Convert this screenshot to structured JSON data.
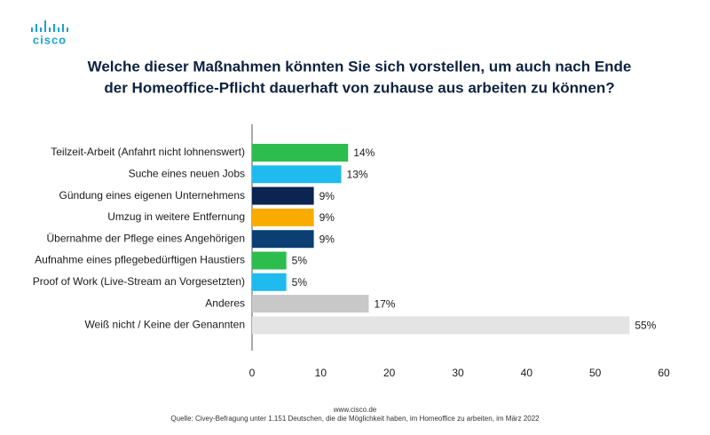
{
  "logo": "cisco",
  "chart_data": {
    "type": "hbar",
    "title": [
      "Welche dieser Maßnahmen könnten Sie sich vorstellen, um auch nach Ende",
      "der Homeoffice-Pflicht dauerhaft von zuhause aus arbeiten zu können?"
    ],
    "categories": [
      "Teilzeit-Arbeit (Anfahrt nicht lohnenswert)",
      "Suche eines neuen Jobs",
      "Gündung eines eigenen Unternehmens",
      "Umzug in weitere Entfernung",
      "Übernahme der Pflege eines Angehörigen",
      "Aufnahme eines pflegebedürftigen Haustiers",
      "Proof of Work (Live-Stream an Vorgesetzten)",
      "Anderes",
      "Weiß nicht / Keine der Genannten"
    ],
    "values": [
      14,
      13,
      9,
      9,
      9,
      5,
      5,
      17,
      55
    ],
    "value_labels": [
      "14%",
      "13%",
      "9%",
      "9%",
      "9%",
      "5%",
      "5%",
      "17%",
      "55%"
    ],
    "colors": [
      "#2dbd4e",
      "#1fbbef",
      "#0b2450",
      "#f9ab00",
      "#0b3f73",
      "#2dbd4e",
      "#1fbbef",
      "#c8c8c8",
      "#e4e4e4"
    ],
    "xlim": [
      0,
      60
    ],
    "xticks": [
      0,
      10,
      20,
      30,
      40,
      50,
      60
    ],
    "grid": false,
    "source_url": "www.cisco.de",
    "source": "Quelle: Civey-Befragung unter 1.151 Deutschen, die die Möglichkeit haben, im Homeoffice zu arbeiten, im März 2022"
  }
}
